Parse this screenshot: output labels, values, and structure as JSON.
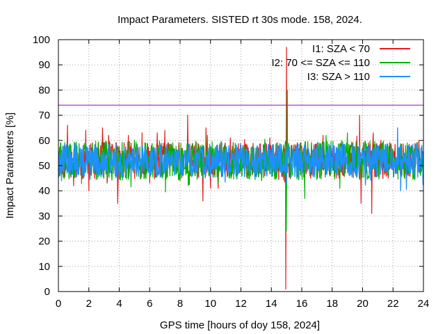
{
  "chart_data": {
    "type": "line",
    "title": "Impact Parameters. SISTED rt 30s mode. 158, 2024.",
    "xlabel": "GPS time [hours of doy 158, 2024]",
    "ylabel": "Impact Parameters [%]",
    "xlim": [
      0,
      24
    ],
    "ylim": [
      0,
      100
    ],
    "xticks": [
      "0",
      "2",
      "4",
      "6",
      "8",
      "10",
      "12",
      "14",
      "16",
      "18",
      "20",
      "22",
      "24"
    ],
    "yticks": [
      "0",
      "10",
      "20",
      "30",
      "40",
      "50",
      "60",
      "70",
      "80",
      "90",
      "100"
    ],
    "grid": true,
    "threshold": {
      "value": 74,
      "color": "#9400d3"
    },
    "series": [
      {
        "name": "I1: SZA < 70",
        "color": "#e41a1c",
        "baseline": 52,
        "spikes": [
          [
            0.6,
            66
          ],
          [
            1.0,
            42
          ],
          [
            1.8,
            64
          ],
          [
            2.0,
            40
          ],
          [
            2.9,
            65
          ],
          [
            3.2,
            43
          ],
          [
            3.3,
            62
          ],
          [
            3.9,
            35
          ],
          [
            4.6,
            62
          ],
          [
            5.5,
            63
          ],
          [
            6.0,
            43
          ],
          [
            6.5,
            63
          ],
          [
            7.0,
            64
          ],
          [
            8.0,
            44
          ],
          [
            8.5,
            70
          ],
          [
            9.5,
            36
          ],
          [
            9.7,
            65
          ],
          [
            10.0,
            41
          ],
          [
            10.5,
            41
          ],
          [
            11.3,
            61
          ],
          [
            13.9,
            61
          ],
          [
            14.95,
            1
          ],
          [
            15.0,
            97
          ],
          [
            17.4,
            62
          ],
          [
            19.8,
            70
          ],
          [
            19.9,
            35
          ],
          [
            20.6,
            31
          ],
          [
            20.7,
            63
          ],
          [
            21.2,
            60
          ],
          [
            23.7,
            60
          ]
        ]
      },
      {
        "name": "I2: 70 <= SZA <= 110",
        "color": "#00b000",
        "baseline": 52,
        "spikes": [
          [
            0.1,
            46
          ],
          [
            2.7,
            46
          ],
          [
            5.0,
            60
          ],
          [
            7.5,
            46
          ],
          [
            9.8,
            62
          ],
          [
            10.5,
            43
          ],
          [
            12.4,
            45
          ],
          [
            14.98,
            24
          ],
          [
            15.05,
            80
          ],
          [
            16.2,
            37
          ],
          [
            17.2,
            45
          ],
          [
            17.6,
            62
          ],
          [
            18.5,
            41
          ],
          [
            19.0,
            63
          ],
          [
            22.3,
            62
          ]
        ]
      },
      {
        "name": "I3: SZA > 110",
        "color": "#1e90ff",
        "baseline": 52,
        "spikes": [
          [
            0.2,
            44
          ],
          [
            4.0,
            45
          ],
          [
            9.0,
            57
          ],
          [
            15.0,
            43
          ],
          [
            22.3,
            65
          ],
          [
            22.5,
            40
          ]
        ]
      }
    ]
  }
}
